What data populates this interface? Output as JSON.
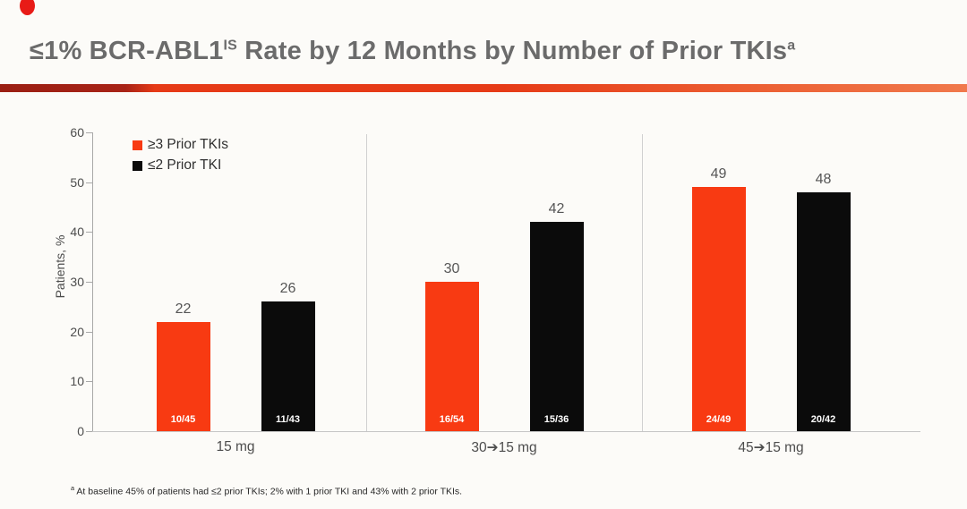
{
  "slide": {
    "title": {
      "text_main": "≤1% BCR-ABL1",
      "sup_is": "IS",
      "text_rest": " Rate by 12 Months by Number of Prior TKIs",
      "sup_a": "a"
    },
    "footnote": {
      "sup": "a",
      "text": " At baseline 45% of patients had ≤2 prior TKIs; 2% with 1 prior TKI and 43% with 2 prior TKIs."
    },
    "accent_colors": {
      "dot_red": "#e81b17",
      "bar_gradient_dark": "#a82317",
      "bar_gradient_bright": "#e63a17",
      "bar_gradient_light": "#f0794c",
      "title_gray": "#6b6b6b"
    }
  },
  "chart_data": {
    "type": "bar",
    "title": "≤1% BCR-ABL1 IS Rate by 12 Months by Number of Prior TKIs",
    "xlabel": "",
    "ylabel": "Patients, %",
    "ylim": [
      0,
      60
    ],
    "yticks": [
      0,
      10,
      20,
      30,
      40,
      50,
      60
    ],
    "grid": false,
    "legend_position": "top-left-inside",
    "categories": [
      "15 mg",
      "30➔15 mg",
      "45➔15 mg"
    ],
    "series": [
      {
        "name": "≥3 Prior TKIs",
        "color": "#f83a12",
        "values": [
          22,
          30,
          49
        ],
        "fractions": [
          "10/45",
          "16/54",
          "24/49"
        ]
      },
      {
        "name": "≤2 Prior TKI",
        "color": "#0b0b0b",
        "values": [
          26,
          42,
          48
        ],
        "fractions": [
          "11/43",
          "15/36",
          "20/42"
        ]
      }
    ]
  }
}
